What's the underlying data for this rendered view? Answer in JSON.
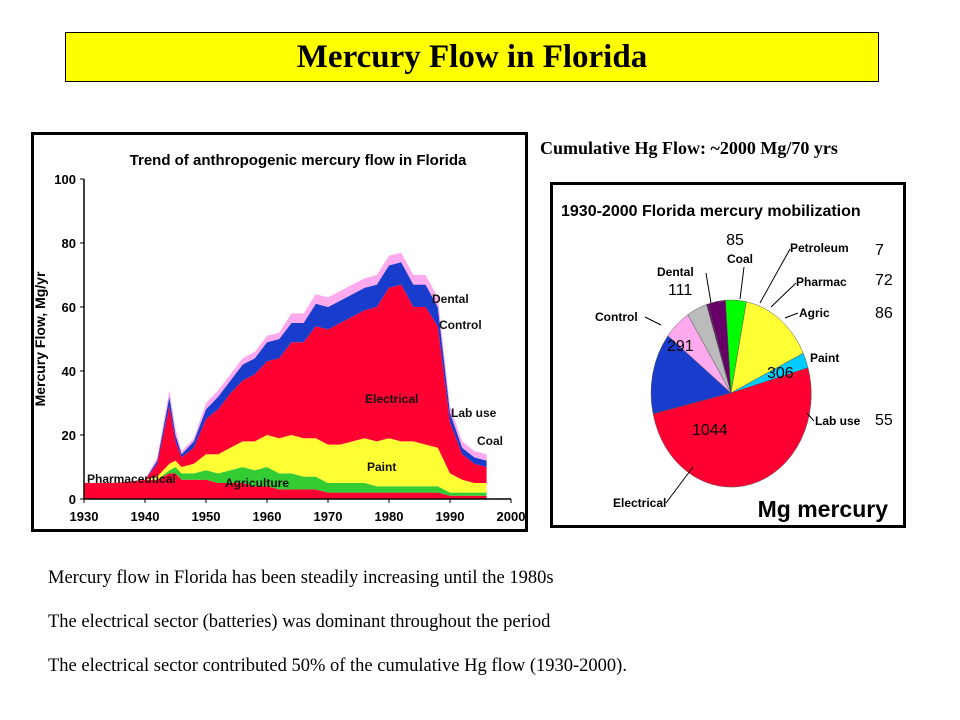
{
  "page": {
    "title": "Mercury Flow in Florida",
    "cumulative_title": "Cumulative Hg Flow: ~2000 Mg/70 yrs",
    "captions": [
      "Mercury flow in Florida has been steadily increasing until the 1980s",
      "The electrical sector (batteries) was dominant throughout the period",
      "The electrical sector contributed 50% of the cumulative Hg flow (1930-2000)."
    ]
  },
  "colors": {
    "title_bg": "#ffff00",
    "electrical": "#ff0033",
    "paint": "#ffff33",
    "agriculture": "#33cc33",
    "control": "#1a3ccc",
    "dental": "#ffaaee",
    "pharmaceutical": "#ff0033",
    "lab_use": "#00ccff",
    "coal": "#bbbbbb",
    "petroleum": "#660066",
    "pharmac": "#660066",
    "agric": "#00ff00"
  },
  "chart_data": [
    {
      "type": "area",
      "title": "Trend of anthropogenic mercury flow in Florida",
      "ylabel": "Mercury Flow, Mg/yr",
      "xlabel": "",
      "x_ticks": [
        "1930",
        "1940",
        "1950",
        "1960",
        "1970",
        "1980",
        "1990",
        "2000"
      ],
      "y_ticks": [
        "0",
        "20",
        "40",
        "60",
        "80",
        "100"
      ],
      "xlim": [
        1930,
        2000
      ],
      "ylim": [
        0,
        100
      ],
      "stacked": true,
      "grid": false,
      "x": [
        1930,
        1935,
        1940,
        1942,
        1944,
        1945,
        1946,
        1948,
        1950,
        1952,
        1954,
        1956,
        1958,
        1960,
        1962,
        1964,
        1966,
        1968,
        1970,
        1972,
        1974,
        1976,
        1978,
        1980,
        1982,
        1984,
        1986,
        1988,
        1990,
        1992,
        1994,
        1996
      ],
      "series": [
        {
          "name": "Pharmaceutical",
          "values": [
            5,
            5,
            6,
            6,
            8,
            8,
            6,
            6,
            6,
            5,
            5,
            5,
            4,
            4,
            3,
            3,
            3,
            3,
            2,
            2,
            2,
            2,
            2,
            2,
            2,
            2,
            2,
            2,
            1,
            1,
            1,
            1
          ]
        },
        {
          "name": "Agriculture",
          "values": [
            0,
            0,
            0,
            0,
            1,
            2,
            2,
            2,
            3,
            3,
            4,
            5,
            5,
            6,
            5,
            5,
            4,
            4,
            3,
            3,
            3,
            3,
            2,
            2,
            2,
            2,
            2,
            2,
            1,
            1,
            1,
            1
          ]
        },
        {
          "name": "Paint",
          "values": [
            0,
            0,
            0,
            1,
            2,
            2,
            2,
            3,
            5,
            6,
            7,
            8,
            9,
            10,
            11,
            12,
            12,
            12,
            12,
            12,
            13,
            14,
            14,
            15,
            14,
            14,
            13,
            12,
            6,
            4,
            3,
            3
          ]
        },
        {
          "name": "Electrical",
          "values": [
            0,
            0,
            0,
            4,
            18,
            6,
            3,
            5,
            11,
            14,
            17,
            19,
            21,
            23,
            25,
            29,
            30,
            35,
            36,
            38,
            39,
            40,
            42,
            47,
            49,
            42,
            43,
            38,
            16,
            8,
            6,
            5
          ]
        },
        {
          "name": "Control",
          "values": [
            0,
            0,
            0,
            1,
            3,
            2,
            1,
            2,
            3,
            4,
            4,
            5,
            5,
            6,
            6,
            6,
            6,
            7,
            7,
            7,
            7,
            7,
            7,
            7,
            7,
            7,
            7,
            6,
            3,
            2,
            2,
            2
          ]
        },
        {
          "name": "Dental",
          "values": [
            0,
            0,
            0,
            1,
            2,
            2,
            1,
            1,
            2,
            2,
            2,
            2,
            2,
            2,
            2,
            3,
            3,
            3,
            3,
            3,
            3,
            3,
            3,
            3,
            3,
            3,
            3,
            3,
            2,
            2,
            2,
            2
          ]
        },
        {
          "name": "Lab use",
          "values": [
            0,
            0,
            0,
            0,
            0,
            0,
            0,
            0,
            0,
            0,
            0,
            0,
            0,
            0,
            0,
            0,
            0,
            0,
            0,
            0,
            0,
            0,
            0,
            0,
            0,
            0,
            0,
            0,
            0,
            0,
            0,
            0
          ]
        },
        {
          "name": "Coal",
          "values": [
            0,
            0,
            0,
            0,
            0,
            0,
            0,
            0,
            0,
            0,
            0,
            0,
            0,
            0,
            0,
            0,
            0,
            0,
            0,
            0,
            0,
            0,
            0,
            0,
            0,
            0,
            0,
            0,
            0,
            0,
            0,
            0
          ]
        }
      ]
    },
    {
      "type": "pie",
      "title": "1930-2000 Florida mercury mobilization",
      "unit_label": "Mg mercury",
      "slices": [
        {
          "label": "Electrical",
          "value": 1044,
          "display": "1044"
        },
        {
          "label": "Control",
          "value": 291,
          "display": "291"
        },
        {
          "label": "Dental",
          "value": 111,
          "display": "111"
        },
        {
          "label": "Coal",
          "value": 85,
          "display": "85"
        },
        {
          "label": "Petroleum",
          "value": 7,
          "display": "7"
        },
        {
          "label": "Pharmac",
          "value": 72,
          "display": "72"
        },
        {
          "label": "Agric",
          "value": 86,
          "display": "86"
        },
        {
          "label": "Paint",
          "value": 306,
          "display": "306"
        },
        {
          "label": "Lab use",
          "value": 55,
          "display": "55"
        }
      ]
    }
  ]
}
